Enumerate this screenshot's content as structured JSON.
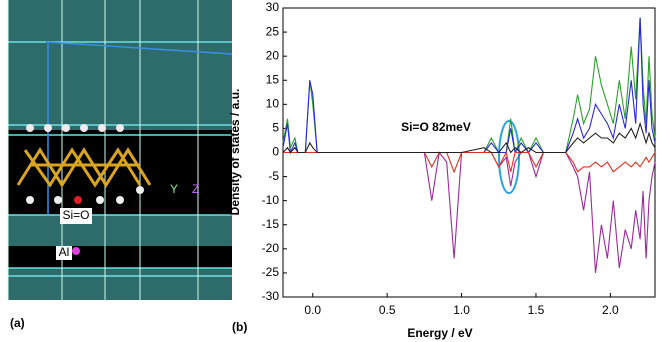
{
  "panel_a": {
    "label": "(a)",
    "si_o": "Si=O",
    "al": "Al",
    "axes": [
      "Y",
      "Z"
    ]
  },
  "chart_data": {
    "type": "line",
    "label": "(b)",
    "ylabel": "Density of states / a.u.",
    "xlabel": "Energy / eV",
    "annotation": "Si=O  82meV",
    "xlim": [
      -0.2,
      2.3
    ],
    "ylim": [
      -30,
      30
    ],
    "xticks": [
      {
        "value": 0,
        "label": "0.0"
      },
      0.5,
      {
        "value": 1,
        "label": "1.0"
      },
      1.5,
      {
        "value": 2,
        "label": "2.0"
      }
    ],
    "yticks": [
      -30,
      -25,
      -20,
      -15,
      -10,
      -5,
      0,
      5,
      10,
      15,
      20,
      25,
      30
    ],
    "x": [
      -0.2,
      -0.17,
      -0.15,
      -0.12,
      -0.1,
      -0.05,
      -0.02,
      0.0,
      0.03,
      0.05,
      0.75,
      0.8,
      0.85,
      0.9,
      0.95,
      1.0,
      1.15,
      1.2,
      1.25,
      1.3,
      1.33,
      1.36,
      1.4,
      1.45,
      1.5,
      1.55,
      1.7,
      1.75,
      1.78,
      1.82,
      1.86,
      1.9,
      1.94,
      1.98,
      2.02,
      2.06,
      2.1,
      2.14,
      2.17,
      2.2,
      2.22,
      2.24,
      2.26,
      2.28,
      2.3
    ],
    "series": [
      {
        "color": "#2ca02c",
        "values": [
          2,
          7,
          1,
          3,
          0,
          0,
          15,
          10,
          0,
          0,
          0,
          0,
          0,
          0,
          0,
          0,
          0,
          3,
          0,
          0,
          7,
          0,
          3,
          0,
          3,
          0,
          0,
          7,
          12,
          6,
          9,
          20,
          14,
          10,
          6,
          15,
          7,
          22,
          11,
          28,
          14,
          6,
          20,
          8,
          3
        ]
      },
      {
        "color": "#2a2ad0",
        "values": [
          1,
          6,
          0,
          2,
          0,
          0,
          15,
          12,
          0,
          0,
          0,
          0,
          0,
          0,
          0,
          0,
          0,
          2,
          0,
          0,
          5,
          0,
          2,
          0,
          2,
          0,
          0,
          4,
          7,
          3,
          5,
          10,
          8,
          6,
          3,
          10,
          5,
          15,
          6,
          28,
          10,
          4,
          15,
          5,
          2
        ]
      },
      {
        "color": "#9b2a9b",
        "values": [
          0,
          0,
          0,
          0,
          0,
          0,
          0,
          0,
          0,
          0,
          0,
          -10,
          0,
          -2,
          -22,
          0,
          0,
          0,
          -3,
          -1,
          -7,
          -2,
          0,
          0,
          -5,
          0,
          0,
          -3,
          -5,
          -12,
          -4,
          -25,
          -15,
          -22,
          -10,
          -24,
          -16,
          -20,
          -12,
          -18,
          -8,
          -22,
          -10,
          -5,
          -2
        ]
      },
      {
        "color": "#e03020",
        "values": [
          0,
          0,
          0,
          0,
          0,
          0,
          0,
          0,
          0,
          0,
          0,
          -3,
          0,
          0,
          -4,
          0,
          0,
          0,
          -3,
          0,
          -4,
          0,
          0,
          0,
          -3,
          0,
          0,
          -2,
          -4,
          -3,
          -3,
          -2,
          -3,
          -2,
          -4,
          -3,
          -2,
          -3,
          -2,
          -3,
          -2,
          -1,
          -2,
          -1,
          0
        ]
      },
      {
        "color": "#222222",
        "values": [
          0,
          1,
          0,
          1,
          0,
          0,
          2,
          1,
          0,
          0,
          0,
          0,
          0,
          0,
          0,
          0,
          1,
          0,
          0,
          2,
          0,
          1,
          0,
          1,
          0,
          0,
          0,
          2,
          3,
          2,
          3,
          4,
          3,
          3,
          2,
          4,
          3,
          5,
          3,
          6,
          4,
          2,
          4,
          2,
          1
        ]
      }
    ]
  }
}
